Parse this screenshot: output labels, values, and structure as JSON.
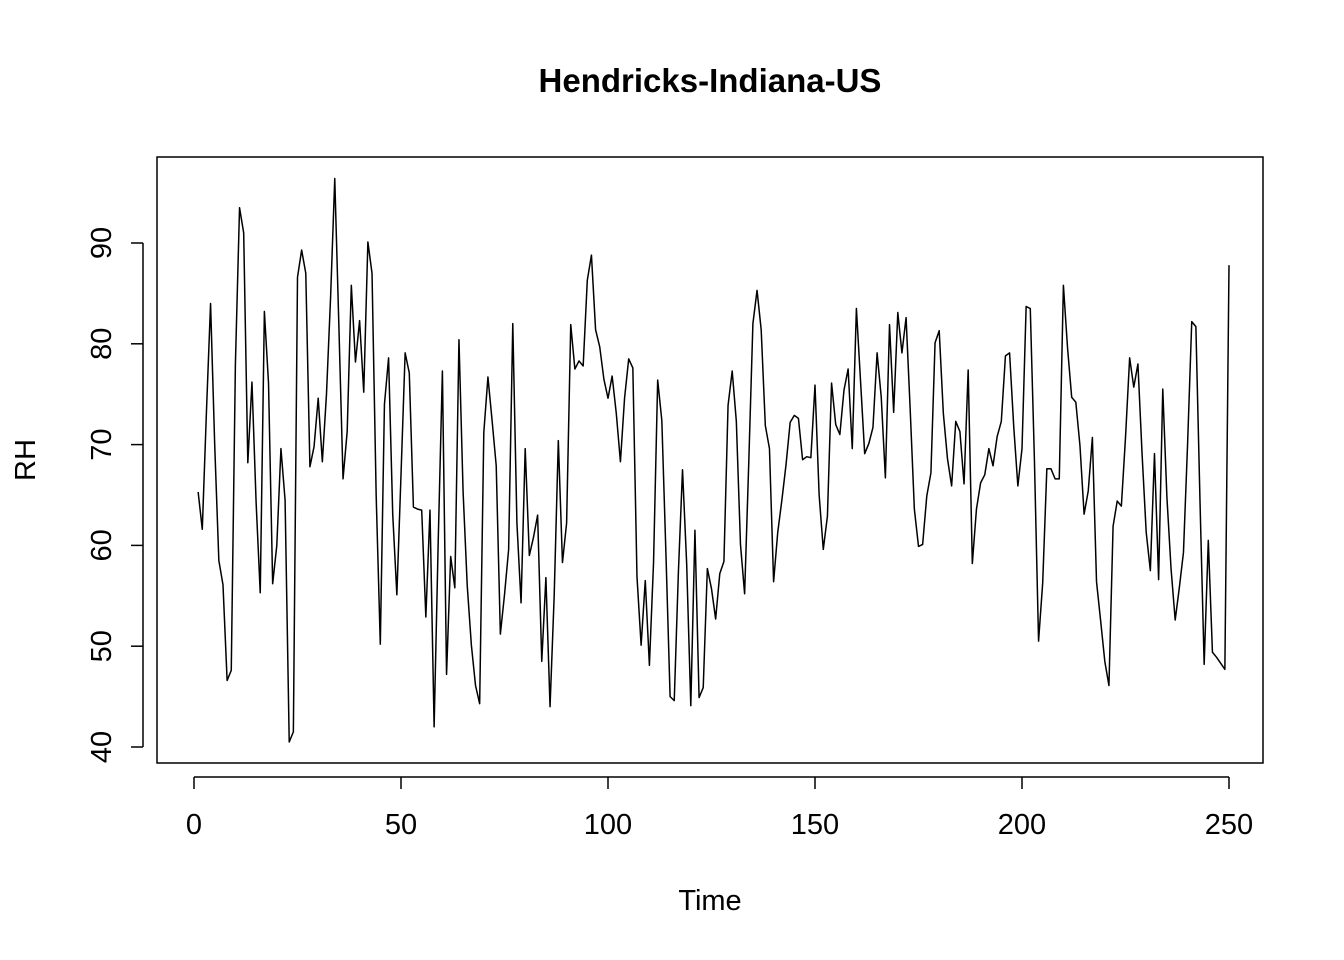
{
  "chart_data": {
    "type": "line",
    "title": "Hendricks-Indiana-US",
    "xlabel": "Time",
    "ylabel": "RH",
    "xlim": [
      0,
      250
    ],
    "ylim": [
      40,
      97
    ],
    "xticks": [
      0,
      50,
      100,
      150,
      200,
      250
    ],
    "yticks": [
      40,
      50,
      60,
      70,
      80,
      90
    ],
    "grid": false,
    "series": [
      {
        "line_color": "#000000",
        "x_start": 1,
        "values": [
          65.3,
          61.6,
          73.2,
          84,
          70,
          58.5,
          56.1,
          46.6,
          47.6,
          78,
          93.5,
          91,
          68.2,
          76.2,
          64.3,
          55.3,
          83.2,
          76.1,
          56.2,
          60,
          69.6,
          64.5,
          40.5,
          41.5,
          86.6,
          89.3,
          87,
          67.8,
          69.8,
          74.6,
          68.3,
          75,
          84.7,
          96.4,
          81.7,
          66.6,
          71.3,
          85.8,
          78.2,
          82.3,
          75.2,
          90.1,
          87,
          65,
          50.2,
          74,
          78.6,
          63.1,
          55.1,
          67,
          79.1,
          77.1,
          63.8,
          63.6,
          63.5,
          52.9,
          63.5,
          42,
          60.6,
          77.3,
          47.2,
          58.9,
          55.8,
          80.4,
          65.3,
          56,
          50.1,
          46.1,
          44.3,
          71.2,
          76.7,
          72.4,
          67.9,
          51.2,
          55.1,
          59.6,
          82,
          62.2,
          54.3,
          69.6,
          59,
          60.8,
          63,
          48.5,
          56.8,
          44,
          55,
          70.4,
          58.3,
          62.2,
          81.9,
          77.5,
          78.3,
          77.8,
          86.3,
          88.8,
          81.4,
          79.7,
          76.5,
          74.6,
          76.8,
          73.1,
          68.3,
          74.6,
          78.5,
          77.6,
          56.9,
          50.1,
          56.5,
          48.1,
          58.3,
          76.4,
          72.4,
          59.1,
          45,
          44.6,
          57.3,
          67.5,
          58.2,
          44.1,
          61.5,
          44.9,
          45.9,
          57.7,
          55.7,
          52.7,
          57.2,
          58.4,
          73.9,
          77.3,
          72.3,
          60.1,
          55.2,
          68.2,
          82,
          85.3,
          81.4,
          71.9,
          69.6,
          56.4,
          61.3,
          64.5,
          68,
          72.2,
          72.9,
          72.6,
          68.5,
          68.8,
          68.7,
          75.9,
          65,
          59.6,
          62.9,
          76.1,
          72,
          71,
          75.4,
          77.5,
          69.6,
          83.5,
          76.3,
          69.1,
          70.1,
          71.7,
          79.1,
          74.7,
          66.7,
          81.9,
          73.2,
          83.1,
          79.1,
          82.6,
          73.4,
          63.6,
          59.9,
          60.1,
          64.9,
          67.2,
          80.1,
          81.3,
          73.1,
          68.6,
          65.9,
          72.3,
          71.3,
          66.1,
          77.4,
          58.2,
          63.6,
          66.2,
          67,
          69.6,
          67.9,
          70.8,
          72.3,
          78.8,
          79.1,
          71.8,
          65.9,
          69.6,
          83.7,
          83.5,
          68.5,
          50.5,
          56.3,
          67.6,
          67.6,
          66.6,
          66.6,
          85.8,
          79.6,
          74.7,
          74.2,
          69.9,
          63.1,
          65.4,
          70.7,
          56.4,
          52.5,
          48.5,
          46.1,
          61.9,
          64.4,
          63.9,
          70.7,
          78.6,
          75.7,
          78,
          69.1,
          61.3,
          57.5,
          69.1,
          56.6,
          75.5,
          64.8,
          57.7,
          52.6,
          55.8,
          59.3,
          70.1,
          82.2,
          81.7,
          64.3,
          48.2,
          60.5,
          49.4,
          48.9,
          48.3,
          47.7,
          87.8
        ]
      }
    ]
  }
}
